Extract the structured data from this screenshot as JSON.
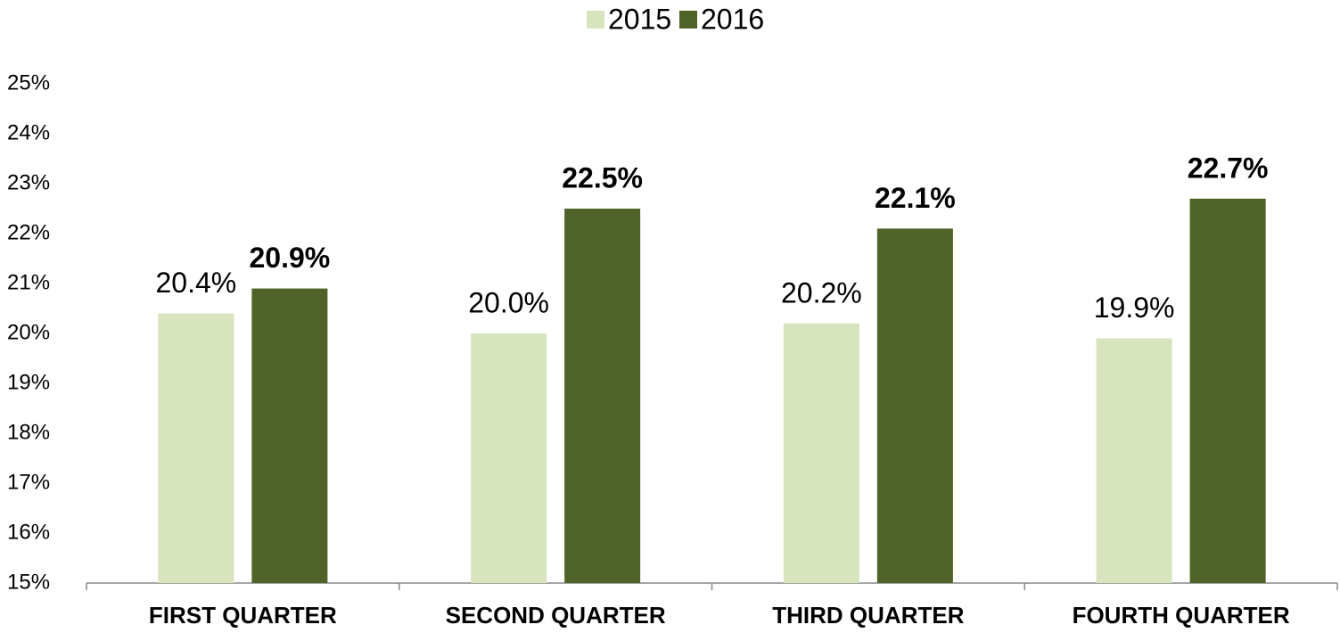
{
  "chart_data": {
    "type": "bar",
    "categories": [
      "FIRST QUARTER",
      "SECOND QUARTER",
      "THIRD QUARTER",
      "FOURTH QUARTER"
    ],
    "series": [
      {
        "name": "2015",
        "color": "#d7e4bd",
        "values": [
          20.4,
          20.0,
          20.2,
          19.9
        ],
        "value_labels": [
          "20.4%",
          "20.0%",
          "20.2%",
          "19.9%"
        ]
      },
      {
        "name": "2016",
        "color": "#4f6228",
        "values": [
          20.9,
          22.5,
          22.1,
          22.7
        ],
        "value_labels": [
          "20.9%",
          "22.5%",
          "22.1%",
          "22.7%"
        ]
      }
    ],
    "ylim": [
      15,
      25
    ],
    "yticks": [
      {
        "value": 15,
        "label": "15%"
      },
      {
        "value": 16,
        "label": "16%"
      },
      {
        "value": 17,
        "label": "17%"
      },
      {
        "value": 18,
        "label": "18%"
      },
      {
        "value": 19,
        "label": "19%"
      },
      {
        "value": 20,
        "label": "20%"
      },
      {
        "value": 21,
        "label": "21%"
      },
      {
        "value": 22,
        "label": "22%"
      },
      {
        "value": 23,
        "label": "23%"
      },
      {
        "value": 24,
        "label": "24%"
      },
      {
        "value": 25,
        "label": "25%"
      }
    ],
    "grid": false,
    "legend": "top"
  }
}
